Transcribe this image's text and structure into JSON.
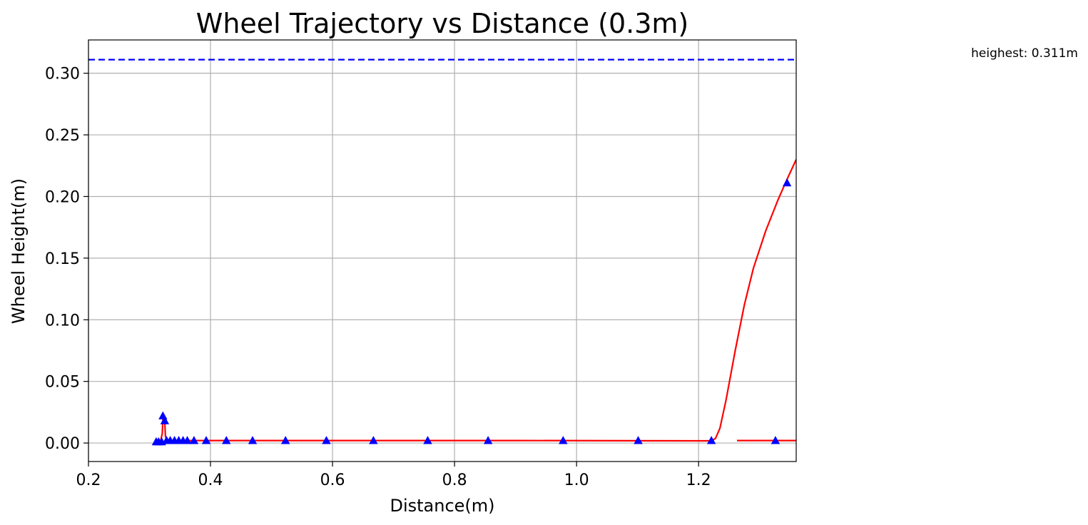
{
  "chart_data": {
    "type": "line",
    "title": "Wheel Trajectory vs Distance (0.3m)",
    "xlabel": "Distance(m)",
    "ylabel": "Wheel Height(m)",
    "xlim": [
      0.2,
      1.36
    ],
    "ylim": [
      -0.015,
      0.327
    ],
    "grid": true,
    "x_ticks": [
      0.2,
      0.4,
      0.6,
      0.8,
      1.0,
      1.2
    ],
    "x_tick_labels": [
      "0.2",
      "0.4",
      "0.6",
      "0.8",
      "1.0",
      "1.2"
    ],
    "y_ticks": [
      0.0,
      0.05,
      0.1,
      0.15,
      0.2,
      0.25,
      0.3
    ],
    "y_tick_labels": [
      "0.00",
      "0.05",
      "0.10",
      "0.15",
      "0.20",
      "0.25",
      "0.30"
    ],
    "reference_line": {
      "y": 0.311,
      "color": "#0000ff",
      "style": "dashed"
    },
    "annotation": "heighest: 0.311m",
    "series": [
      {
        "kind": "line",
        "color": "#ff0000",
        "segments": [
          [
            [
              0.31,
              0.0005
            ],
            [
              0.318,
              0.001
            ],
            [
              0.321,
              0.008
            ],
            [
              0.322,
              0.019
            ],
            [
              0.323,
              0.022
            ],
            [
              0.325,
              0.018
            ],
            [
              0.326,
              0.006
            ],
            [
              0.328,
              0.002
            ],
            [
              0.33,
              0.002
            ],
            [
              0.6,
              0.002
            ],
            [
              0.9,
              0.002
            ],
            [
              1.2,
              0.0018
            ],
            [
              1.222,
              0.0018
            ]
          ],
          [
            [
              1.222,
              0.0018
            ],
            [
              1.228,
              0.004
            ],
            [
              1.235,
              0.012
            ],
            [
              1.245,
              0.035
            ],
            [
              1.26,
              0.075
            ],
            [
              1.275,
              0.112
            ],
            [
              1.29,
              0.142
            ],
            [
              1.31,
              0.172
            ],
            [
              1.33,
              0.197
            ],
            [
              1.345,
              0.214
            ],
            [
              1.36,
              0.23
            ]
          ],
          [
            [
              1.263,
              0.002
            ],
            [
              1.36,
              0.002
            ]
          ]
        ]
      },
      {
        "kind": "scatter",
        "marker": "triangle",
        "color": "#0000ff",
        "x": [
          0.311,
          0.315,
          0.32,
          0.322,
          0.325,
          0.328,
          0.334,
          0.341,
          0.348,
          0.355,
          0.362,
          0.373,
          0.393,
          0.426,
          0.469,
          0.523,
          0.59,
          0.667,
          0.756,
          0.855,
          0.978,
          1.101,
          1.221,
          1.326,
          1.345
        ],
        "y": [
          0.001,
          0.001,
          0.001,
          0.022,
          0.018,
          0.002,
          0.002,
          0.002,
          0.002,
          0.002,
          0.002,
          0.002,
          0.002,
          0.002,
          0.002,
          0.002,
          0.002,
          0.002,
          0.002,
          0.002,
          0.002,
          0.002,
          0.002,
          0.002,
          0.211
        ]
      }
    ]
  }
}
